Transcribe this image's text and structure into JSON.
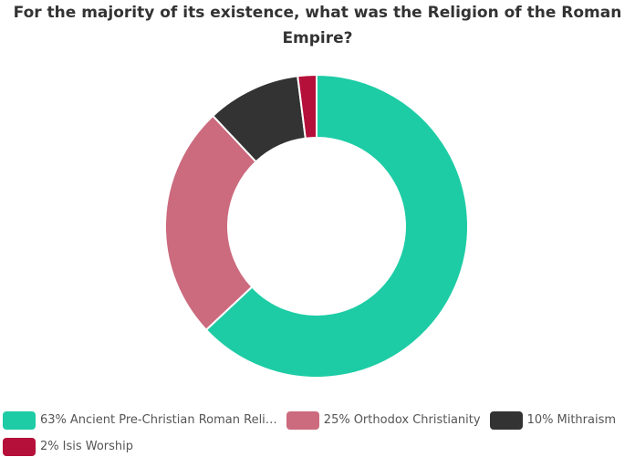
{
  "chart_data": {
    "type": "donut",
    "title": "For the majority of its existence, what was the Religion of the Roman Empire?",
    "categories": [
      "Ancient Pre-Christian Roman Reli…",
      "Orthodox Christianity",
      "Mithraism",
      "Isis Worship"
    ],
    "values": [
      63,
      25,
      10,
      2
    ],
    "value_labels": [
      "63%",
      "25%",
      "10%",
      "2%"
    ],
    "colors": [
      "#1dcca5",
      "#cc6a7e",
      "#333333",
      "#b5103a"
    ],
    "legend": "bottom"
  }
}
